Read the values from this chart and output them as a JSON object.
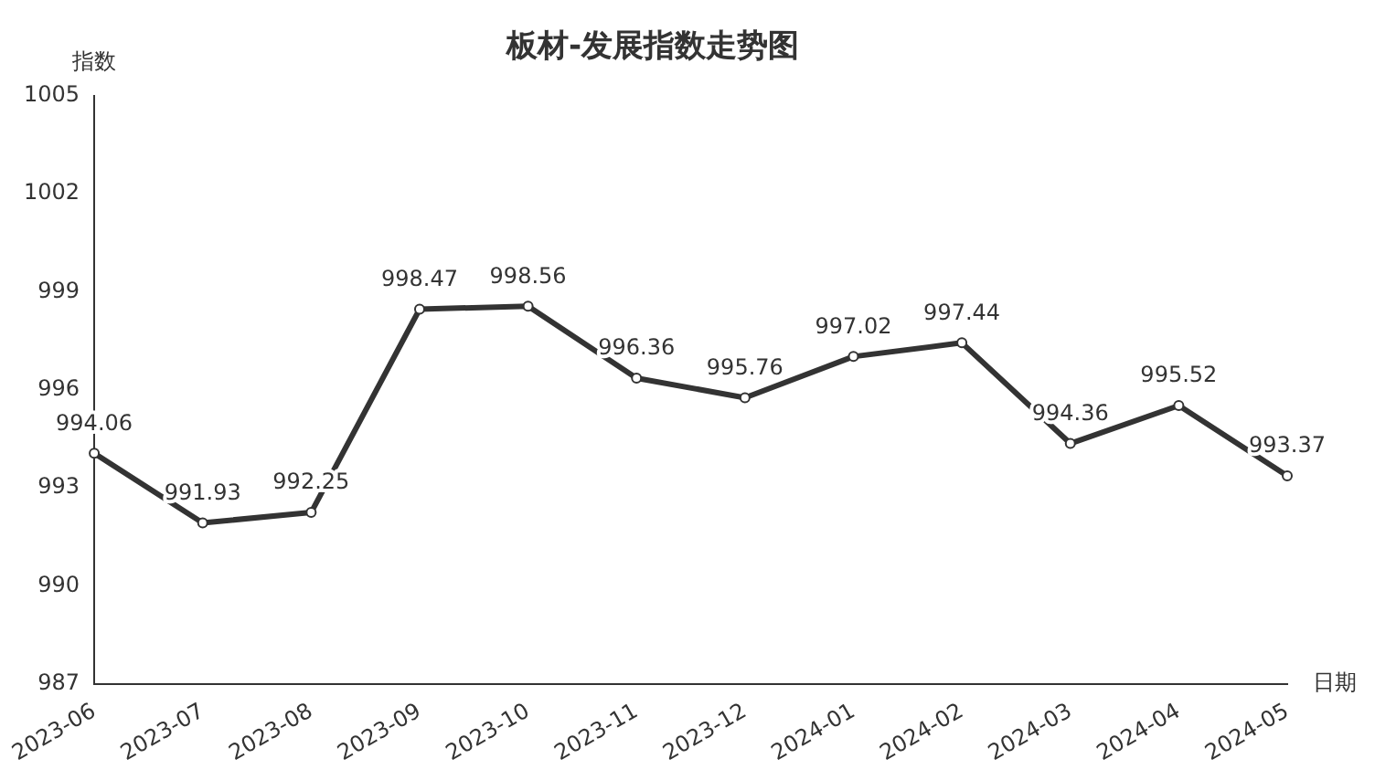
{
  "chart_data": {
    "type": "line",
    "title": "板材-发展指数走势图",
    "xlabel": "日期",
    "ylabel": "指数",
    "categories": [
      "2023-06",
      "2023-07",
      "2023-08",
      "2023-09",
      "2023-10",
      "2023-11",
      "2023-12",
      "2024-01",
      "2024-02",
      "2024-03",
      "2024-04",
      "2024-05"
    ],
    "series": [
      {
        "color": "#333333",
        "values": [
          994.06,
          991.93,
          992.25,
          998.47,
          998.56,
          996.36,
          995.76,
          997.02,
          997.44,
          994.36,
          995.52,
          993.37
        ]
      }
    ],
    "ylim": [
      987,
      1005
    ],
    "yticks": [
      987,
      990,
      993,
      996,
      999,
      1002,
      1005
    ],
    "grid": false,
    "legend": false,
    "marker": "circle",
    "line_style": "solid",
    "data_labels": true
  }
}
